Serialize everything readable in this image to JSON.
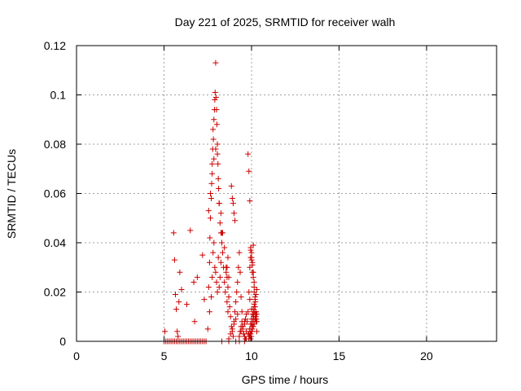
{
  "chart_data": {
    "type": "scatter",
    "title": "Day 221 of 2025, SRMTID for receiver walh",
    "xlabel": "GPS time / hours",
    "ylabel": "SRMTID / TECUs",
    "xlim": [
      0,
      24
    ],
    "ylim": [
      0,
      0.12
    ],
    "xticks": [
      0,
      5,
      10,
      15,
      20
    ],
    "xtick_labels": [
      "0",
      "5",
      "10",
      "15",
      "20"
    ],
    "yticks": [
      0,
      0.02,
      0.04,
      0.06,
      0.08,
      0.1,
      0.12
    ],
    "ytick_labels": [
      "0",
      "0.02",
      "0.04",
      "0.06",
      "0.08",
      "0.1",
      "0.12"
    ],
    "grid": true,
    "marker": "plus",
    "color": "#cc0000",
    "series": [
      {
        "name": "SRMTID",
        "x": [
          5.0,
          5.1,
          5.2,
          5.3,
          5.4,
          5.5,
          5.6,
          5.7,
          5.8,
          5.9,
          6.0,
          6.1,
          6.2,
          6.3,
          6.4,
          6.5,
          6.6,
          6.7,
          6.8,
          6.9,
          7.0,
          7.1,
          7.2,
          7.3,
          7.4,
          8.3,
          8.7,
          9.1,
          9.3,
          9.6,
          5.05,
          5.55,
          5.6,
          5.65,
          5.7,
          5.75,
          5.8,
          5.85,
          5.9,
          6.0,
          6.3,
          6.5,
          6.7,
          6.75,
          6.9,
          7.2,
          7.3,
          7.5,
          7.55,
          7.6,
          7.62,
          7.65,
          7.7,
          7.72,
          7.75,
          7.78,
          7.8,
          7.82,
          7.85,
          7.88,
          7.9,
          7.92,
          7.95,
          7.97,
          8.0,
          8.02,
          8.05,
          8.08,
          8.1,
          8.12,
          8.15,
          8.2,
          8.25,
          8.3,
          7.6,
          7.7,
          7.75,
          7.8,
          7.85,
          7.9,
          7.95,
          8.0,
          8.05,
          8.1,
          8.15,
          8.2,
          8.25,
          8.3,
          8.35,
          8.4,
          8.45,
          8.5,
          8.55,
          8.6,
          8.65,
          7.55,
          7.65,
          7.75,
          7.85,
          7.95,
          8.05,
          8.15,
          8.25,
          8.35,
          8.45,
          8.55,
          8.65,
          8.6,
          8.65,
          8.7,
          8.75,
          8.8,
          8.85,
          8.9,
          8.95,
          9.0,
          9.05,
          9.1,
          9.15,
          9.2,
          9.25,
          9.3,
          9.35,
          9.4,
          9.45,
          9.5,
          9.55,
          9.6,
          9.65,
          9.7,
          9.75,
          9.8,
          9.85,
          9.9,
          9.95,
          10.0,
          10.05,
          10.1,
          10.15,
          10.2,
          10.25,
          10.3,
          8.7,
          8.8,
          8.9,
          9.0,
          9.1,
          9.2,
          9.3,
          9.4,
          9.5,
          9.6,
          9.7,
          9.8,
          9.9,
          10.0,
          10.1,
          10.2,
          8.85,
          8.9,
          8.95,
          9.0,
          9.05,
          8.6,
          8.7,
          9.8,
          9.85,
          9.9,
          9.95,
          10.0,
          10.05,
          10.1,
          10.15,
          10.2,
          10.25,
          10.3,
          9.85,
          9.9,
          9.95,
          10.0,
          10.05,
          10.1,
          10.15,
          10.2,
          10.25,
          10.3,
          9.9,
          10.0,
          10.1,
          10.2,
          9.85,
          9.9,
          9.95,
          10.0,
          10.05,
          10.1,
          10.15,
          10.2,
          10.25,
          10.3,
          9.85,
          9.88,
          9.92,
          9.95,
          9.98,
          10.02,
          10.05,
          10.08,
          10.12,
          10.15,
          10.18,
          10.22,
          10.25,
          10.28,
          9.95,
          10.0,
          10.05,
          10.1,
          10.15,
          9.3,
          9.35,
          9.4,
          9.45,
          9.5,
          9.55,
          9.6,
          9.65,
          9.7
        ],
        "y": [
          0,
          0,
          0,
          0,
          0,
          0,
          0,
          0,
          0,
          0,
          0,
          0,
          0,
          0,
          0,
          0,
          0,
          0,
          0,
          0,
          0,
          0,
          0,
          0,
          0,
          0,
          0,
          0,
          0,
          0,
          0.004,
          0.044,
          0.033,
          0.019,
          0.013,
          0.004,
          0.002,
          0.016,
          0.028,
          0.021,
          0.015,
          0.045,
          0.024,
          0.008,
          0.026,
          0.035,
          0.017,
          0.005,
          0.022,
          0.032,
          0.042,
          0.05,
          0.058,
          0.064,
          0.072,
          0.078,
          0.086,
          0.082,
          0.09,
          0.094,
          0.098,
          0.101,
          0.113,
          0.099,
          0.094,
          0.088,
          0.076,
          0.072,
          0.066,
          0.062,
          0.056,
          0.048,
          0.044,
          0.04,
          0.012,
          0.018,
          0.026,
          0.036,
          0.04,
          0.03,
          0.028,
          0.024,
          0.02,
          0.034,
          0.022,
          0.026,
          0.032,
          0.044,
          0.036,
          0.03,
          0.024,
          0.02,
          0.028,
          0.016,
          0.012,
          0.053,
          0.06,
          0.068,
          0.074,
          0.078,
          0.08,
          0.056,
          0.052,
          0.044,
          0.038,
          0.03,
          0.034,
          0.026,
          0.022,
          0.018,
          0.014,
          0.01,
          0.006,
          0.004,
          0.002,
          0.008,
          0.012,
          0.016,
          0.02,
          0.024,
          0.03,
          0.036,
          0.028,
          0.018,
          0.012,
          0.006,
          0.003,
          0.002,
          0.001,
          0.004,
          0.008,
          0.012,
          0.02,
          0.03,
          0.034,
          0.036,
          0.032,
          0.028,
          0.02,
          0.014,
          0.008,
          0.004,
          0.001,
          0.003,
          0.005,
          0.007,
          0.009,
          0.011,
          0.002,
          0.004,
          0.006,
          0.008,
          0.001,
          0.003,
          0.005,
          0.007,
          0.009,
          0.011,
          0.063,
          0.058,
          0.056,
          0.052,
          0.049,
          0.03,
          0.026,
          0.076,
          0.069,
          0.057,
          0.038,
          0.033,
          0.028,
          0.039,
          0.024,
          0.018,
          0.012,
          0.008,
          0.001,
          0.002,
          0.003,
          0.004,
          0.005,
          0.006,
          0.007,
          0.009,
          0.01,
          0.011,
          0.017,
          0.013,
          0.011,
          0.009,
          0.003,
          0.005,
          0.007,
          0.009,
          0.011,
          0.013,
          0.015,
          0.017,
          0.019,
          0.021,
          0.001,
          0.002,
          0.003,
          0.001,
          0.002,
          0.004,
          0.006,
          0.008,
          0.01,
          0.012,
          0.014,
          0.016,
          0.012,
          0.009,
          0.037,
          0.034,
          0.031,
          0.026,
          0.022,
          0.002,
          0.004,
          0.006,
          0.008,
          0.005,
          0.003,
          0.007,
          0.009,
          0.011
        ]
      }
    ]
  }
}
